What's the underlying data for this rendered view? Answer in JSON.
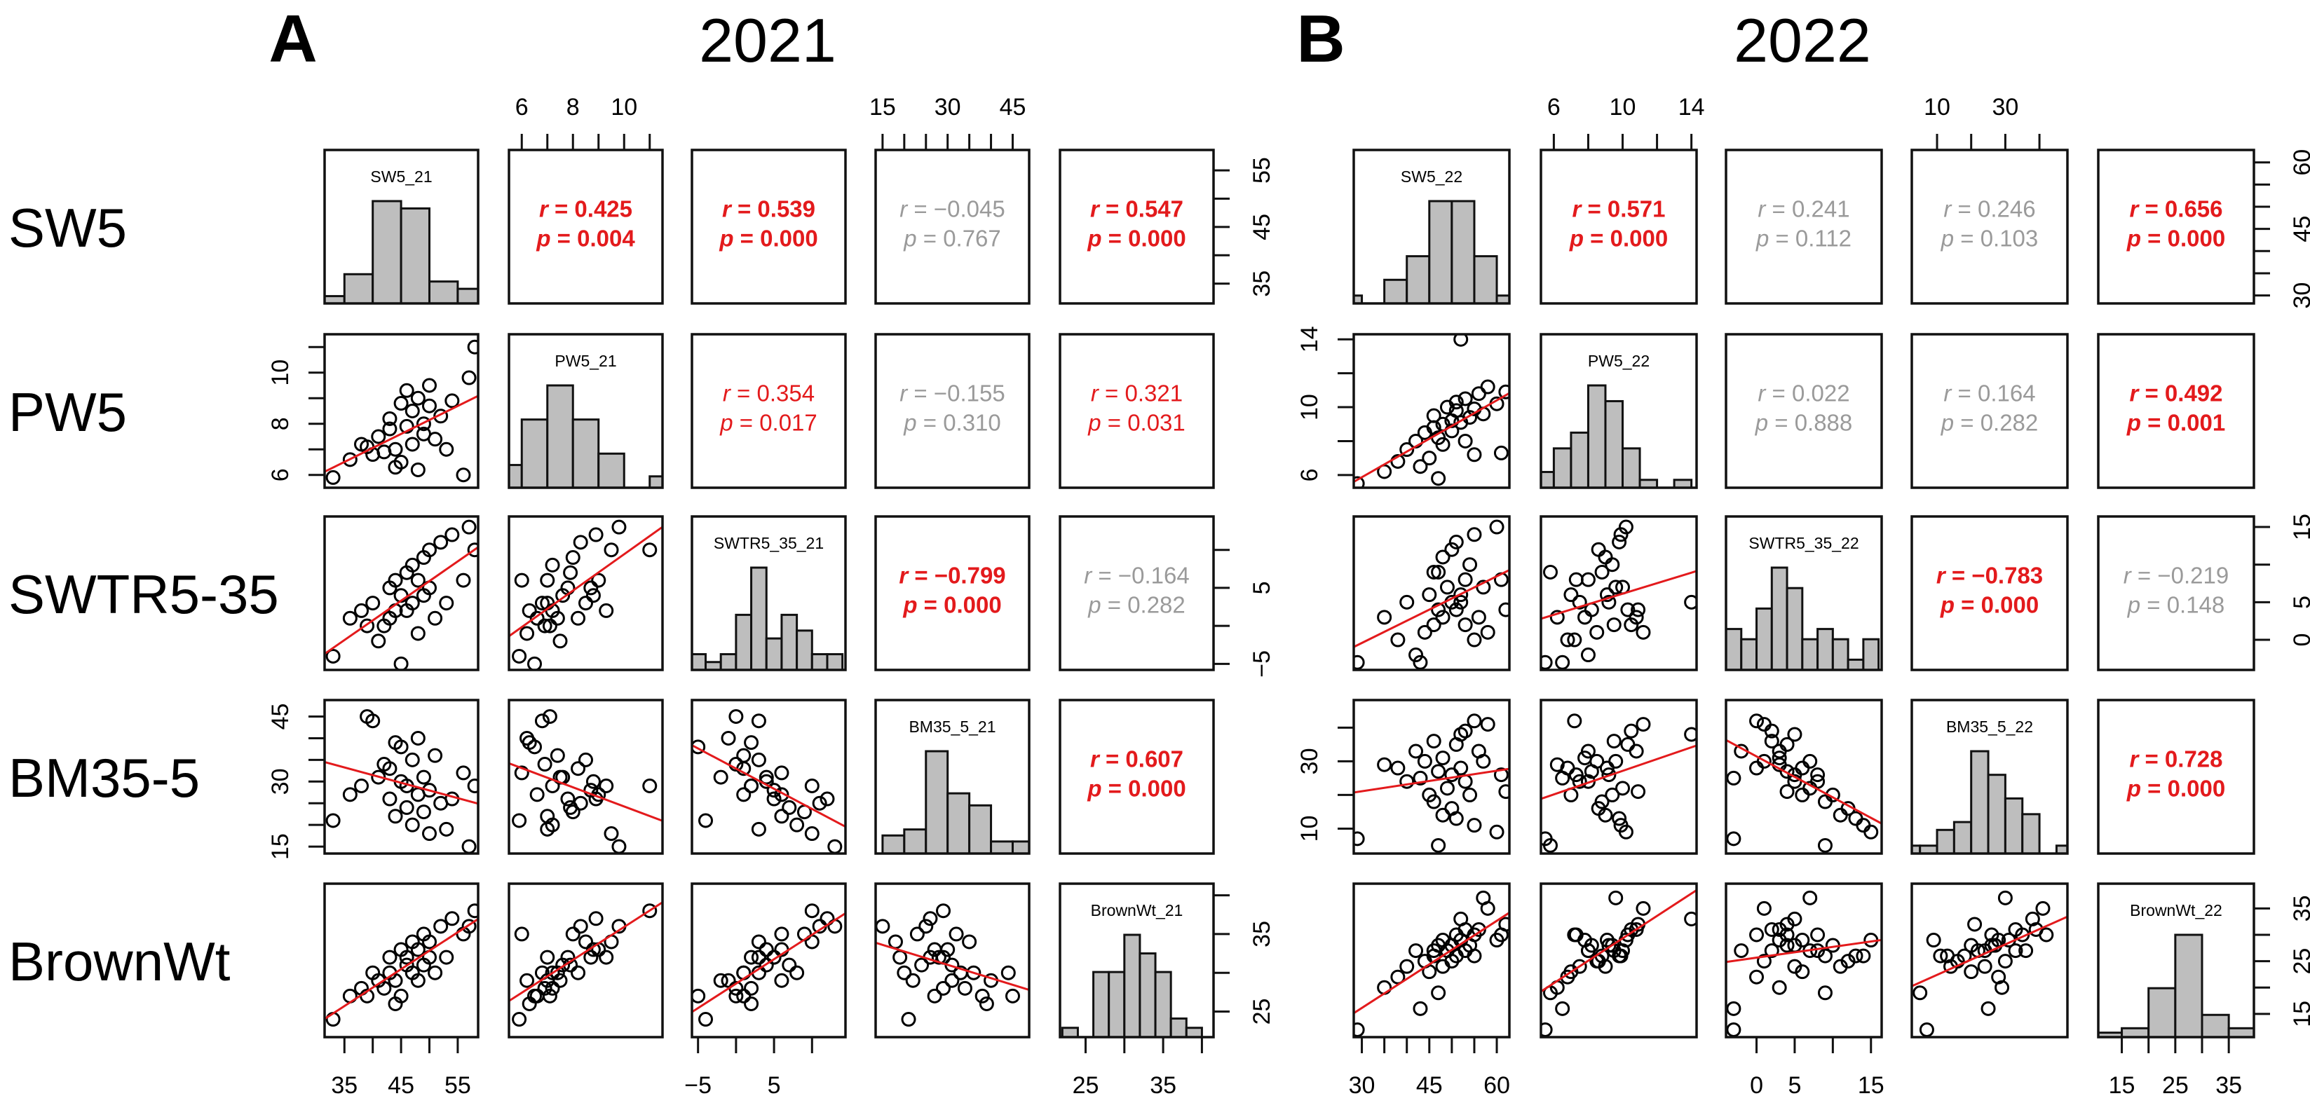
{
  "chart_data": {
    "type": "scatter-matrix",
    "row_labels": [
      "SW5",
      "PW5",
      "SWTR5-35",
      "BM35-5",
      "BrownWt"
    ],
    "r_label": "r",
    "p_label": "p",
    "colors": {
      "significant": "#e31a1c",
      "not_significant": "#9a9a9a",
      "hist_fill": "#bebebe",
      "regression": "#e31a1c",
      "points": "#000000"
    },
    "panels": [
      {
        "letter": "A",
        "year": "2021",
        "variables": [
          {
            "name": "SW5_21",
            "range": [
              31.5,
              58.6
            ],
            "ticks": [
              35,
              40,
              45,
              50,
              55
            ],
            "labels": [
              35,
              45,
              55
            ]
          },
          {
            "name": "PW5_21",
            "range": [
              5.5,
              11.5
            ],
            "ticks": [
              6,
              7,
              8,
              9,
              10,
              11
            ],
            "labels": [
              6,
              8,
              10
            ]
          },
          {
            "name": "SWTR5_35_21",
            "range": [
              -5.8,
              14.4
            ],
            "ticks": [
              -5,
              0,
              5,
              10
            ],
            "labels": [
              -5,
              5
            ]
          },
          {
            "name": "BM35_5_21",
            "range": [
              13.4,
              48.8
            ],
            "ticks": [
              15,
              20,
              25,
              30,
              35,
              40,
              45
            ],
            "labels": [
              15,
              30,
              45
            ]
          },
          {
            "name": "BrownWt_21",
            "range": [
              21.7,
              41.5
            ],
            "ticks": [
              25,
              30,
              35,
              40
            ],
            "labels": [
              25,
              35
            ]
          }
        ],
        "histograms": [
          {
            "start": 30,
            "width": 5,
            "counts": [
              1,
              4,
              14,
              13,
              3,
              2
            ]
          },
          {
            "start": 5,
            "width": 1,
            "counts": [
              2,
              6,
              9,
              6,
              3,
              0,
              1
            ]
          },
          {
            "start": -6,
            "width": 2,
            "counts": [
              2,
              1,
              2,
              7,
              13,
              4,
              7,
              5,
              2,
              2
            ]
          },
          {
            "start": 15,
            "width": 5,
            "counts": [
              3,
              4,
              17,
              10,
              8,
              2,
              2
            ]
          },
          {
            "start": 22,
            "width": 2,
            "counts": [
              1,
              0,
              7,
              7,
              11,
              9,
              7,
              2,
              1
            ]
          }
        ],
        "correlations": [
          {
            "row": 0,
            "col": 1,
            "r": "0.425",
            "p": "0.004",
            "style": "strong"
          },
          {
            "row": 0,
            "col": 2,
            "r": "0.539",
            "p": "0.000",
            "style": "strong"
          },
          {
            "row": 0,
            "col": 3,
            "r": "−0.045",
            "p": "0.767",
            "style": "ns"
          },
          {
            "row": 0,
            "col": 4,
            "r": "0.547",
            "p": "0.000",
            "style": "strong"
          },
          {
            "row": 1,
            "col": 2,
            "r": "0.354",
            "p": "0.017",
            "style": "weak"
          },
          {
            "row": 1,
            "col": 3,
            "r": "−0.155",
            "p": "0.310",
            "style": "ns"
          },
          {
            "row": 1,
            "col": 4,
            "r": "0.321",
            "p": "0.031",
            "style": "weak"
          },
          {
            "row": 2,
            "col": 3,
            "r": "−0.799",
            "p": "0.000",
            "style": "strong"
          },
          {
            "row": 2,
            "col": 4,
            "r": "−0.164",
            "p": "0.282",
            "style": "ns"
          },
          {
            "row": 3,
            "col": 4,
            "r": "0.607",
            "p": "0.000",
            "style": "strong"
          }
        ],
        "observations": [
          [
            33,
            5.9,
            -4,
            21,
            24
          ],
          [
            36,
            6.6,
            1,
            27,
            27
          ],
          [
            38,
            7.2,
            2,
            29,
            28
          ],
          [
            40,
            6.8,
            3,
            44,
            30
          ],
          [
            41,
            7.5,
            -2,
            31,
            29
          ],
          [
            42,
            6.9,
            0,
            34,
            28
          ],
          [
            43,
            7.8,
            5,
            26,
            32
          ],
          [
            43,
            8.2,
            1,
            33,
            30
          ],
          [
            44,
            7.0,
            6,
            22,
            29
          ],
          [
            45,
            8.8,
            4,
            30,
            33
          ],
          [
            45,
            6.5,
            -5,
            38,
            27
          ],
          [
            46,
            7.9,
            7,
            24,
            31
          ],
          [
            46,
            9.3,
            2,
            29,
            32
          ],
          [
            47,
            8.5,
            3,
            35,
            34
          ],
          [
            47,
            7.2,
            8,
            20,
            30
          ],
          [
            48,
            9.0,
            6,
            27,
            33
          ],
          [
            48,
            6.2,
            -1,
            40,
            29
          ],
          [
            49,
            8.0,
            9,
            23,
            35
          ],
          [
            49,
            7.6,
            4,
            31,
            31
          ],
          [
            50,
            8.7,
            5,
            28,
            32
          ],
          [
            50,
            9.5,
            10,
            18,
            34
          ],
          [
            51,
            7.4,
            1,
            36,
            30
          ],
          [
            52,
            8.3,
            11,
            25,
            36
          ],
          [
            53,
            7.0,
            3,
            19,
            32
          ],
          [
            54,
            8.9,
            12,
            26,
            37
          ],
          [
            56,
            6.0,
            6,
            32,
            35
          ],
          [
            58,
            11.0,
            10,
            29,
            38
          ],
          [
            57,
            9.8,
            13,
            15,
            36
          ],
          [
            39,
            7.1,
            0,
            45,
            27
          ],
          [
            44,
            6.3,
            2,
            39,
            26
          ]
        ]
      },
      {
        "letter": "B",
        "year": "2022",
        "variables": [
          {
            "name": "SW5_22",
            "range": [
              28.2,
              62.8
            ],
            "ticks": [
              30,
              35,
              40,
              45,
              50,
              55,
              60
            ],
            "labels": [
              30,
              45,
              60
            ]
          },
          {
            "name": "PW5_22",
            "range": [
              5.25,
              14.3
            ],
            "ticks": [
              6,
              8,
              10,
              12,
              14
            ],
            "labels": [
              6,
              10,
              14
            ]
          },
          {
            "name": "SWTR5_35_22",
            "range": [
              -4,
              16.4
            ],
            "ticks": [
              0,
              5,
              10,
              15
            ],
            "labels": [
              0,
              5,
              15
            ]
          },
          {
            "name": "BM35_5_22",
            "range": [
              2.6,
              48.2
            ],
            "ticks": [
              10,
              20,
              30,
              40
            ],
            "labels": [
              10,
              30
            ]
          },
          {
            "name": "BrownWt_22",
            "range": [
              10.6,
              39.7
            ],
            "ticks": [
              15,
              20,
              25,
              30,
              35
            ],
            "labels": [
              15,
              25,
              35
            ]
          }
        ],
        "histograms": [
          {
            "start": 25,
            "width": 5,
            "counts": [
              1,
              0,
              3,
              6,
              13,
              13,
              6,
              1
            ]
          },
          {
            "start": 5,
            "width": 1,
            "counts": [
              2,
              5,
              7,
              13,
              11,
              5,
              1,
              0,
              1
            ]
          },
          {
            "start": -4,
            "width": 2,
            "counts": [
              4,
              3,
              6,
              10,
              8,
              3,
              4,
              3,
              1,
              3
            ]
          },
          {
            "start": 0,
            "width": 5,
            "counts": [
              1,
              1,
              3,
              4,
              13,
              10,
              7,
              5,
              0,
              1
            ]
          },
          {
            "start": 10,
            "width": 5,
            "counts": [
              1,
              2,
              11,
              23,
              5,
              2
            ]
          }
        ],
        "correlations": [
          {
            "row": 0,
            "col": 1,
            "r": "0.571",
            "p": "0.000",
            "style": "strong"
          },
          {
            "row": 0,
            "col": 2,
            "r": "0.241",
            "p": "0.112",
            "style": "ns"
          },
          {
            "row": 0,
            "col": 3,
            "r": "0.246",
            "p": "0.103",
            "style": "ns"
          },
          {
            "row": 0,
            "col": 4,
            "r": "0.656",
            "p": "0.000",
            "style": "strong"
          },
          {
            "row": 1,
            "col": 2,
            "r": "0.022",
            "p": "0.888",
            "style": "ns"
          },
          {
            "row": 1,
            "col": 3,
            "r": "0.164",
            "p": "0.282",
            "style": "ns"
          },
          {
            "row": 1,
            "col": 4,
            "r": "0.492",
            "p": "0.001",
            "style": "strong"
          },
          {
            "row": 2,
            "col": 3,
            "r": "−0.783",
            "p": "0.000",
            "style": "strong"
          },
          {
            "row": 2,
            "col": 4,
            "r": "−0.219",
            "p": "0.148",
            "style": "ns"
          },
          {
            "row": 3,
            "col": 4,
            "r": "0.728",
            "p": "0.000",
            "style": "strong"
          }
        ],
        "observations": [
          [
            29,
            5.5,
            -3,
            7,
            12
          ],
          [
            35,
            6.2,
            3,
            29,
            20
          ],
          [
            38,
            6.8,
            0,
            28,
            22
          ],
          [
            40,
            7.5,
            5,
            24,
            24
          ],
          [
            42,
            8.0,
            -2,
            33,
            27
          ],
          [
            44,
            8.5,
            1,
            30,
            25
          ],
          [
            45,
            7.0,
            6,
            20,
            23
          ],
          [
            46,
            8.8,
            9,
            18,
            26
          ],
          [
            46,
            9.5,
            2,
            36,
            27
          ],
          [
            47,
            8.2,
            4,
            27,
            28
          ],
          [
            48,
            9.0,
            11,
            14,
            24
          ],
          [
            48,
            7.8,
            3,
            31,
            29
          ],
          [
            49,
            10.0,
            7,
            22,
            27
          ],
          [
            50,
            9.2,
            5,
            26,
            28
          ],
          [
            50,
            8.6,
            12,
            16,
            25
          ],
          [
            51,
            10.3,
            4,
            35,
            30
          ],
          [
            51,
            9.8,
            13,
            13,
            26
          ],
          [
            52,
            9.1,
            6,
            28,
            29
          ],
          [
            52,
            14.0,
            5,
            38,
            33
          ],
          [
            53,
            8.0,
            8,
            24,
            27
          ],
          [
            53,
            10.5,
            2,
            39,
            31
          ],
          [
            54,
            9.4,
            10,
            20,
            28
          ],
          [
            55,
            7.2,
            0,
            42,
            30
          ],
          [
            55,
            9.9,
            14,
            11,
            26
          ],
          [
            56,
            10.8,
            3,
            33,
            31
          ],
          [
            57,
            9.6,
            7,
            30,
            37
          ],
          [
            58,
            11.2,
            1,
            41,
            35
          ],
          [
            60,
            10.2,
            15,
            9,
            29
          ],
          [
            61,
            7.3,
            8,
            26,
            30
          ],
          [
            62,
            10.9,
            4,
            21,
            32
          ],
          [
            47,
            5.8,
            9,
            5,
            19
          ],
          [
            43,
            6.5,
            -3,
            25,
            16
          ]
        ]
      }
    ]
  }
}
